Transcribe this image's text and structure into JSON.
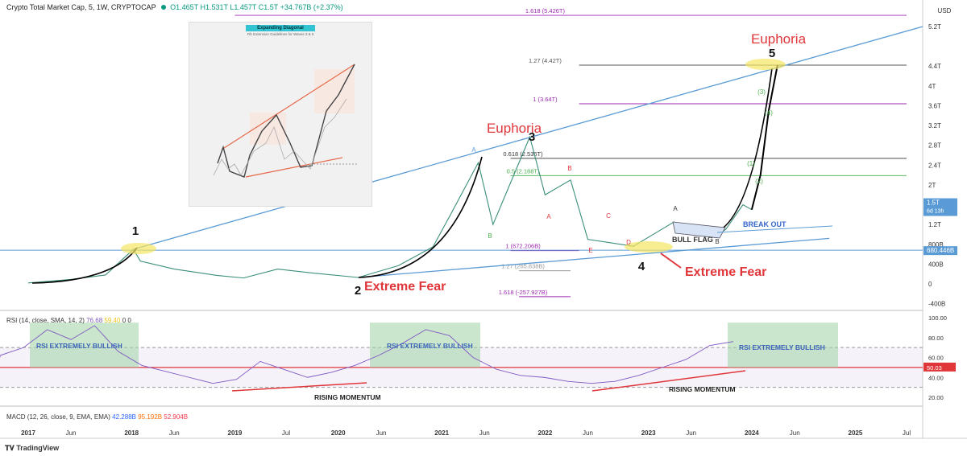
{
  "header": {
    "symbol": "Crypto Total Market Cap, 5, 1W, CRYPTOCAP",
    "o": "O1.465T",
    "h": "H1.531T",
    "l": "L1.457T",
    "c": "C1.5T",
    "chg": "+34.767B (+2.37%)"
  },
  "colors": {
    "up": "#089981",
    "down": "#f23645",
    "trend": "#5b9bd5",
    "fear": "#e0363a",
    "fib_purple": "#9c27b0",
    "fib_green": "#4caf50"
  },
  "inset": {
    "title": "Expanding Diagonal",
    "subtitle": "Fib Extension Guidelines for Waves 3 & 5"
  },
  "chart_data": {
    "type": "line",
    "series": [
      {
        "values": [
          [
            "2017-01",
            0.02
          ],
          [
            "2017-06",
            0.09
          ],
          [
            "2017-10",
            0.18
          ],
          [
            "2018-01-08",
            0.7
          ],
          [
            "2018-02",
            0.46
          ],
          [
            "2018-06",
            0.3
          ],
          [
            "2018-11",
            0.17
          ],
          [
            "2019-02",
            0.12
          ],
          [
            "2019-06",
            0.3
          ],
          [
            "2019-10",
            0.22
          ],
          [
            "2020-03-12",
            0.13
          ],
          [
            "2020-08",
            0.37
          ],
          [
            "2020-12",
            0.75
          ],
          [
            "2021-02",
            1.4
          ],
          [
            "2021-05-10",
            2.45
          ],
          [
            "2021-07",
            1.2
          ],
          [
            "2021-11-08",
            2.97
          ],
          [
            "2022-01",
            1.8
          ],
          [
            "2022-04",
            2.1
          ],
          [
            "2022-06",
            0.9
          ],
          [
            "2022-11-09",
            0.76
          ],
          [
            "2023-04",
            1.25
          ],
          [
            "2023-09",
            1.0
          ],
          [
            "2023-10",
            1.1
          ],
          [
            "2023-12",
            1.6
          ],
          [
            "2024-01",
            1.5
          ]
        ]
      },
      {
        "values": [
          [
            "2024-01",
            1.5
          ],
          [
            "2024-02",
            2.2
          ],
          [
            "2024-03",
            3.5
          ],
          [
            "2024-04",
            4.42
          ]
        ]
      }
    ],
    "x_ticks": [
      "2017",
      "Jun",
      "2018",
      "Jun",
      "2019",
      "Jul",
      "2020",
      "Jun",
      "2021",
      "Jun",
      "2022",
      "Jun",
      "2023",
      "Jun",
      "2024",
      "Jun",
      "2025",
      "Jul"
    ],
    "y_ticks": [
      "5.2T",
      "4.4T",
      "4T",
      "3.6T",
      "3.2T",
      "2.8T",
      "2.4T",
      "2T",
      "1.6T",
      "1.2T",
      "800B",
      "400B",
      "0",
      "-400B"
    ],
    "y_unit": "USD",
    "price_tags": [
      {
        "text": "1.5T",
        "sub": "6d 13h"
      },
      {
        "text": "680.446B"
      }
    ],
    "fib_levels": [
      {
        "label": "1.618 (5.426T)",
        "value": 5.426
      },
      {
        "label": "1.27 (4.42T)",
        "value": 4.42
      },
      {
        "label": "1 (3.64T)",
        "value": 3.64
      },
      {
        "label": "0.618 (2.536T)",
        "value": 2.536
      },
      {
        "label": "0.5 (2.188T)",
        "value": 2.188
      },
      {
        "label": "1 (672.206B)",
        "value": 0.672
      },
      {
        "label": "1.27 (265.838B)",
        "value": 0.266
      },
      {
        "label": "1.618 (-257.927B)",
        "value": -0.258
      }
    ],
    "waves": [
      "1",
      "2",
      "3",
      "4",
      "5"
    ],
    "sub_waves": [
      "A",
      "B",
      "A",
      "B",
      "C",
      "D",
      "E",
      "A",
      "B",
      "(1)",
      "(2)",
      "(3)",
      "(4)"
    ],
    "annotations": [
      "Euphoria",
      "Euphoria",
      "Extreme Fear",
      "Extreme Fear",
      "BULL FLAG",
      "BREAK OUT"
    ],
    "rsi": {
      "header": "RSI (14, close, SMA, 14, 2)",
      "values_text": [
        "76.68",
        "59.40",
        "0",
        "0"
      ],
      "ticks": [
        "100.00",
        "80.00",
        "60.00",
        "40.00",
        "20.00"
      ],
      "tag": "50.03",
      "labels": [
        "RSI EXTREMELY BULLISH",
        "RSI EXTREMELY BULLISH",
        "RSI EXTREMELY BULLISH",
        "RISING MOMENTUM",
        "RISING MOMENTUM"
      ]
    },
    "macd": {
      "header": "MACD (12, 26, close, 9, EMA, EMA)",
      "values_text": [
        "42.288B",
        "95.192B",
        "52.904B"
      ]
    }
  },
  "footer": {
    "brand": "TradingView"
  }
}
